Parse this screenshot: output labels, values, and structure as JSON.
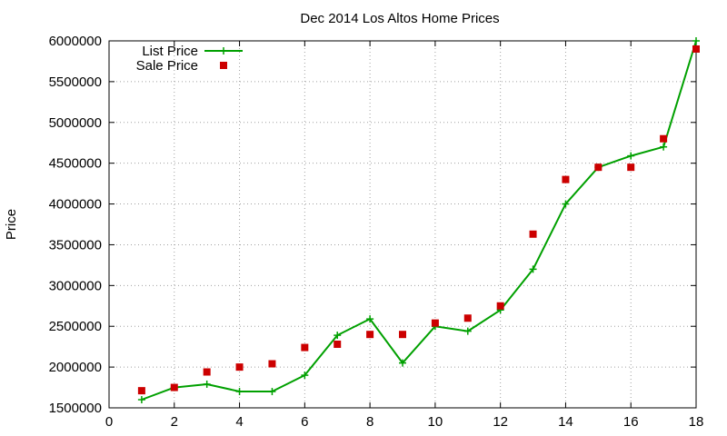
{
  "chart_data": {
    "type": "line",
    "title": "Dec 2014 Los Altos Home Prices",
    "xlabel": "",
    "ylabel": "Price",
    "xlim": [
      0,
      18
    ],
    "ylim": [
      1500000,
      6000000
    ],
    "x_ticks": [
      0,
      2,
      4,
      6,
      8,
      10,
      12,
      14,
      16,
      18
    ],
    "y_ticks": [
      1500000,
      2000000,
      2500000,
      3000000,
      3500000,
      4000000,
      4500000,
      5000000,
      5500000,
      6000000
    ],
    "x_tick_labels": [
      "0",
      "2",
      "4",
      "6",
      "8",
      "10",
      "12",
      "14",
      "16",
      "18"
    ],
    "y_tick_labels": [
      "1500000",
      "2000000",
      "2500000",
      "3000000",
      "3500000",
      "4000000",
      "4500000",
      "5000000",
      "5500000",
      "6000000"
    ],
    "grid": true,
    "legend_position": "top-left",
    "x": [
      1,
      2,
      3,
      4,
      5,
      6,
      7,
      8,
      9,
      10,
      11,
      12,
      13,
      14,
      15,
      16,
      17,
      18
    ],
    "series": [
      {
        "name": "List Price",
        "style": "line-points",
        "marker": "plus",
        "color": "#00a000",
        "values": [
          1600000,
          1750000,
          1790000,
          1700000,
          1700000,
          1900000,
          2390000,
          2590000,
          2050000,
          2500000,
          2440000,
          2700000,
          3200000,
          4000000,
          4450000,
          4590000,
          4700000,
          6000000
        ]
      },
      {
        "name": "Sale Price",
        "style": "points",
        "marker": "square",
        "color": "#cc0000",
        "values": [
          1710000,
          1750000,
          1940000,
          2000000,
          2040000,
          2240000,
          2280000,
          2400000,
          2400000,
          2540000,
          2600000,
          2750000,
          3630000,
          4300000,
          4450000,
          4450000,
          4800000,
          5900000
        ]
      }
    ]
  }
}
